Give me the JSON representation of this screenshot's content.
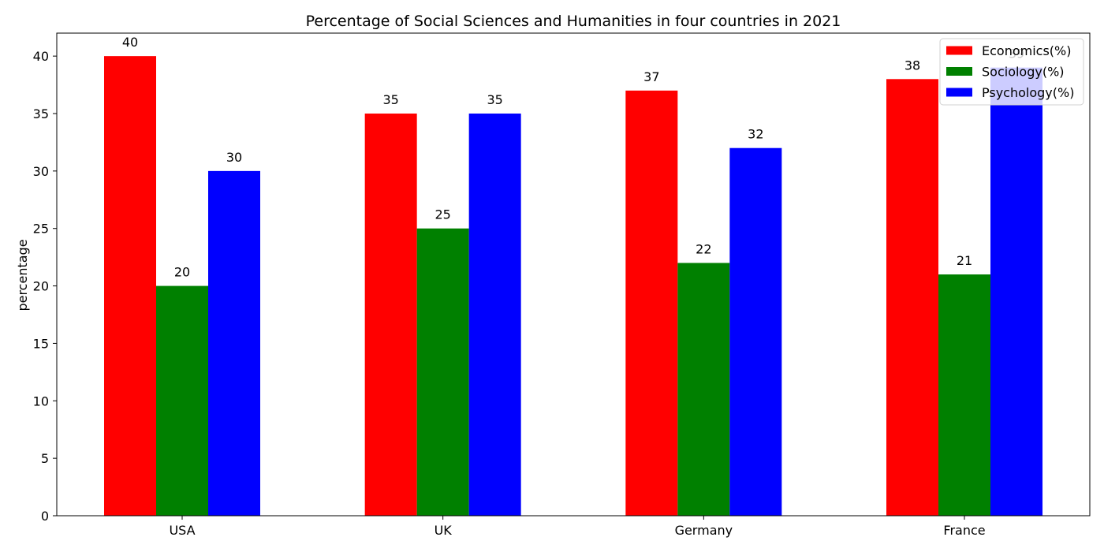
{
  "chart_data": {
    "type": "bar",
    "title": "Percentage of Social Sciences and Humanities in four countries in 2021",
    "xlabel": "",
    "ylabel": "percentage",
    "categories": [
      "USA",
      "UK",
      "Germany",
      "France"
    ],
    "series": [
      {
        "name": "Economics(%)",
        "color": "#ff0000",
        "values": [
          40,
          35,
          37,
          38
        ]
      },
      {
        "name": "Sociology(%)",
        "color": "#008000",
        "values": [
          20,
          25,
          22,
          21
        ]
      },
      {
        "name": "Psychology(%)",
        "color": "#0000ff",
        "values": [
          30,
          35,
          32,
          39
        ]
      }
    ],
    "ylim": [
      0,
      42
    ],
    "yticks": [
      0,
      5,
      10,
      15,
      20,
      25,
      30,
      35,
      40
    ],
    "grid": false,
    "legend_position": "top-right"
  }
}
